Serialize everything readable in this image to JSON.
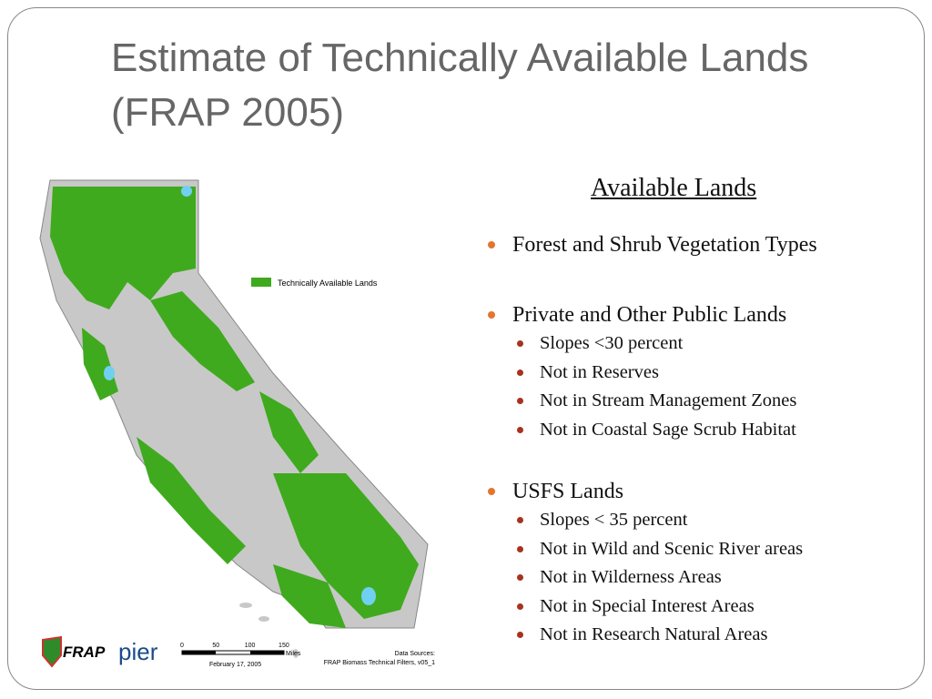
{
  "title": [
    "Estimate of Technically Available Lands",
    "(FRAP 2005)"
  ],
  "heading": "Available Lands",
  "bullets": [
    {
      "text": "Forest and Shrub Vegetation Types",
      "sub": []
    },
    {
      "text": "Private and Other Public Lands",
      "sub": [
        "Slopes <30 percent",
        "Not in Reserves",
        "Not in Stream Management Zones",
        "Not in Coastal Sage Scrub Habitat"
      ]
    },
    {
      "text": "USFS Lands",
      "sub": [
        "Slopes < 35 percent",
        "Not in Wild and Scenic River areas",
        "Not in Wilderness Areas",
        "Not in Special Interest Areas",
        "Not in Research Natural Areas"
      ]
    }
  ],
  "map": {
    "legend": "Technically Available Lands",
    "scale_labels": [
      "0",
      "50",
      "100",
      "150"
    ],
    "scale_unit": "Miles",
    "date": "February 17, 2005",
    "source": [
      "Data Sources:",
      "FRAP Biomass Technical Filters, v05_1"
    ]
  },
  "logos": [
    "FRAP",
    "pier"
  ]
}
